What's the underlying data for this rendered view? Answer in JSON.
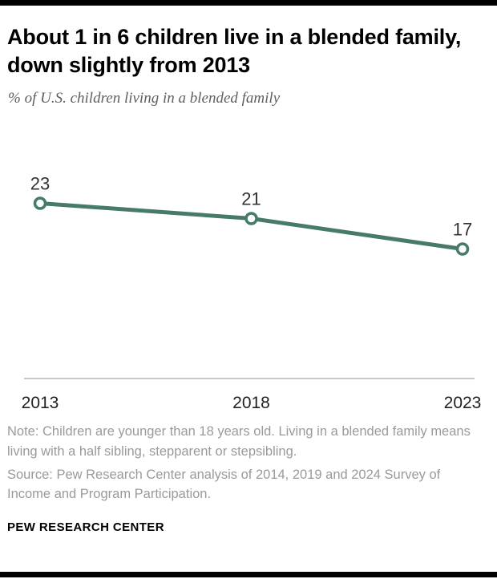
{
  "accent_color": "#477b68",
  "header": {
    "title": "About 1 in 6 children live in a blended family, down slightly from 2013",
    "subtitle": "% of U.S. children living in a blended family"
  },
  "chart_data": {
    "type": "line",
    "categories": [
      "2013",
      "2018",
      "2023"
    ],
    "values": [
      23,
      21,
      17
    ],
    "title": "About 1 in 6 children live in a blended family, down slightly from 2013",
    "subtitle": "% of U.S. children living in a blended family",
    "xlabel": "",
    "ylabel": "% of U.S. children living in a blended family",
    "ylim": [
      0,
      30
    ],
    "grid": false,
    "legend": "none",
    "line_color": "#477b68",
    "marker": "open-circle",
    "data_labels": true,
    "label_color": "#333333",
    "axis_color": "#a8a8a8",
    "tick_label_color": "#222222"
  },
  "footer": {
    "note": "Note: Children are younger than 18 years old. Living in a blended family means living with a half sibling, stepparent or stepsibling.",
    "source": "Source: Pew Research Center analysis of 2014, 2019 and 2024 Survey of Income and Program Participation.",
    "brand": "PEW RESEARCH CENTER"
  }
}
